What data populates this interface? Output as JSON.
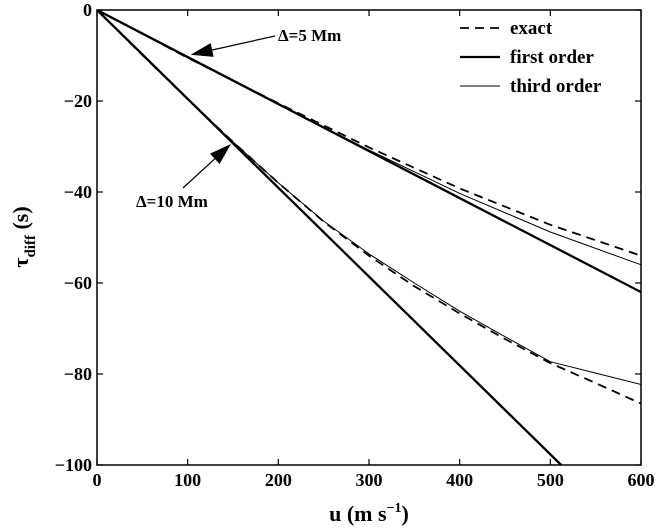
{
  "chart_data": {
    "type": "line",
    "xlabel": "u  (m s",
    "xlabel_sup": "−1",
    "xlabel_close": ")",
    "ylabel": "τ",
    "ylabel_sub": "diff",
    "ylabel_unit": "  (s)",
    "xlim": [
      0,
      600
    ],
    "ylim": [
      -100,
      0
    ],
    "xticks": [
      0,
      100,
      200,
      300,
      400,
      500,
      600
    ],
    "yticks": [
      0,
      -20,
      -40,
      -60,
      -80,
      -100
    ],
    "ytick_labels": [
      "0",
      "−20",
      "−40",
      "−60",
      "−80",
      "−100"
    ],
    "grid": false,
    "legend_position": "top-right",
    "legend": [
      {
        "label": "exact",
        "style": "dashed"
      },
      {
        "label": "first order",
        "style": "thick"
      },
      {
        "label": "third order",
        "style": "thin"
      }
    ],
    "annotations": [
      {
        "text": "Δ=5 Mm",
        "point": [
          100,
          -10.5
        ]
      },
      {
        "text": "Δ=10 Mm",
        "point": [
          150,
          -29
        ]
      }
    ],
    "series": [
      {
        "group": "Δ=5 Mm",
        "style": "dashed",
        "x": [
          0,
          50,
          100,
          200,
          300,
          400,
          500,
          600
        ],
        "y": [
          0,
          -5.2,
          -10.5,
          -20.5,
          -30.2,
          -39.2,
          -47.2,
          -54
        ]
      },
      {
        "group": "Δ=5 Mm",
        "style": "thick",
        "x": [
          0,
          600
        ],
        "y": [
          0,
          -62
        ]
      },
      {
        "group": "Δ=5 Mm",
        "style": "thin",
        "x": [
          0,
          50,
          100,
          200,
          300,
          400,
          500,
          600
        ],
        "y": [
          0,
          -5.2,
          -10.5,
          -20.7,
          -30.8,
          -40.3,
          -48.8,
          -56
        ]
      },
      {
        "group": "Δ=10 Mm",
        "style": "dashed",
        "x": [
          0,
          50,
          100,
          150,
          200,
          250,
          300,
          350,
          400,
          450,
          500,
          550,
          600
        ],
        "y": [
          0,
          -9.9,
          -19.6,
          -29,
          -38,
          -46.5,
          -54,
          -60.7,
          -66.7,
          -72.3,
          -77.6,
          -82,
          -86.5
        ]
      },
      {
        "group": "Δ=10 Mm",
        "style": "thick",
        "x": [
          0,
          512
        ],
        "y": [
          0,
          -100
        ]
      },
      {
        "group": "Δ=10 Mm",
        "style": "thin",
        "x": [
          0,
          50,
          100,
          150,
          200,
          250,
          300,
          350,
          400,
          450,
          500,
          550,
          600
        ],
        "y": [
          0,
          -9.9,
          -19.6,
          -29,
          -38,
          -46.4,
          -53.6,
          -60,
          -66.2,
          -71.8,
          -77.3,
          -79.8,
          -82.3
        ]
      }
    ]
  }
}
